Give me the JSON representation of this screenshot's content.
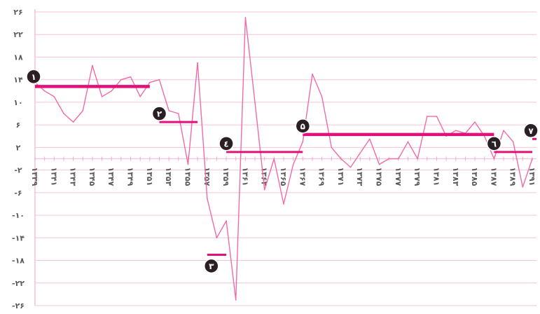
{
  "chart_data": {
    "type": "line",
    "title": "",
    "xlabel": "",
    "ylabel": "",
    "ylim": [
      -26,
      26
    ],
    "y_ticks": [
      {
        "value": 26,
        "label": "۲۶"
      },
      {
        "value": 22,
        "label": "۲۲"
      },
      {
        "value": 18,
        "label": "۱۸"
      },
      {
        "value": 14,
        "label": "۱۴"
      },
      {
        "value": 10,
        "label": "۱۰"
      },
      {
        "value": 6,
        "label": "۶"
      },
      {
        "value": 2,
        "label": "۲"
      },
      {
        "value": -2,
        "label": "-۲"
      },
      {
        "value": -6,
        "label": "-۶"
      },
      {
        "value": -10,
        "label": "-۱۰"
      },
      {
        "value": -14,
        "label": "-۱۴"
      },
      {
        "value": -18,
        "label": "-۱۸"
      },
      {
        "value": -22,
        "label": "-۲۲"
      },
      {
        "value": -26,
        "label": "-۲۶"
      }
    ],
    "x_start": 1339,
    "x_end": 1391,
    "x_ticks": [
      {
        "value": 1339,
        "label": "۱۳۳۹"
      },
      {
        "value": 1341,
        "label": "۱۳۴۱"
      },
      {
        "value": 1343,
        "label": "۱۳۴۳"
      },
      {
        "value": 1345,
        "label": "۱۳۴۵"
      },
      {
        "value": 1347,
        "label": "۱۳۴۷"
      },
      {
        "value": 1349,
        "label": "۱۳۴۹"
      },
      {
        "value": 1351,
        "label": "۱۳۵۱"
      },
      {
        "value": 1353,
        "label": "۱۳۵۳"
      },
      {
        "value": 1355,
        "label": "۱۳۵۵"
      },
      {
        "value": 1357,
        "label": "۱۳۵۷"
      },
      {
        "value": 1359,
        "label": "۱۳۵۹"
      },
      {
        "value": 1361,
        "label": "۱۳۶۱"
      },
      {
        "value": 1363,
        "label": "۱۳۶۳"
      },
      {
        "value": 1365,
        "label": "۱۳۶۵"
      },
      {
        "value": 1367,
        "label": "۱۳۶۷"
      },
      {
        "value": 1369,
        "label": "۱۳۶۹"
      },
      {
        "value": 1371,
        "label": "۱۳۷۱"
      },
      {
        "value": 1373,
        "label": "۱۳۷۳"
      },
      {
        "value": 1375,
        "label": "۱۳۷۵"
      },
      {
        "value": 1377,
        "label": "۱۳۷۷"
      },
      {
        "value": 1379,
        "label": "۱۳۷۹"
      },
      {
        "value": 1381,
        "label": "۱۳۸۱"
      },
      {
        "value": 1383,
        "label": "۱۳۸۳"
      },
      {
        "value": 1385,
        "label": "۱۳۸۵"
      },
      {
        "value": 1387,
        "label": "۱۳۸۷"
      },
      {
        "value": 1389,
        "label": "۱۳۸۹"
      },
      {
        "value": 1391,
        "label": "۱۳۹۱"
      }
    ],
    "grid": true,
    "series": [
      {
        "color": "#f06ba8",
        "x": [
          1339,
          1340,
          1341,
          1342,
          1343,
          1344,
          1345,
          1346,
          1347,
          1348,
          1349,
          1350,
          1351,
          1352,
          1353,
          1354,
          1355,
          1356,
          1357,
          1358,
          1359,
          1360,
          1361,
          1362,
          1363,
          1364,
          1365,
          1366,
          1367,
          1368,
          1369,
          1370,
          1371,
          1372,
          1373,
          1374,
          1375,
          1376,
          1377,
          1378,
          1379,
          1380,
          1381,
          1382,
          1383,
          1384,
          1385,
          1386,
          1387,
          1388,
          1389,
          1390,
          1391
        ],
        "y": [
          13.5,
          12,
          11,
          8,
          6.5,
          8.5,
          16.5,
          11,
          12,
          14,
          14.5,
          11,
          13.5,
          14,
          8.5,
          8,
          -1,
          17,
          -7,
          -14,
          -11,
          -25,
          25,
          10,
          -5.5,
          0,
          -8,
          -1,
          3,
          15,
          11,
          2,
          0,
          -1.5,
          1,
          3.5,
          -1,
          0,
          0,
          3,
          0,
          7.5,
          7.5,
          4,
          5,
          4.5,
          6.5,
          4,
          0,
          5,
          3,
          -5,
          0
        ]
      }
    ],
    "periods": [
      {
        "label": "۱",
        "x_from": 1339,
        "x_to": 1351,
        "level": 12.8
      },
      {
        "label": "۲",
        "x_from": 1352,
        "x_to": 1356,
        "level": 6.5
      },
      {
        "label": "۳",
        "x_from": 1357,
        "x_to": 1359,
        "level": -17
      },
      {
        "label": "٤",
        "x_from": 1359,
        "x_to": 1367,
        "level": 1.2
      },
      {
        "label": "۵",
        "x_from": 1367,
        "x_to": 1387,
        "level": 4.3
      },
      {
        "label": "٦",
        "x_from": 1387,
        "x_to": 1391,
        "level": 1.2
      },
      {
        "label": "۷",
        "x_from": 1391,
        "x_to": 1392,
        "level": 3.5
      }
    ],
    "line_color": "#f06ba8",
    "period_color": "#e0117a",
    "badge_color": "#2a1f24",
    "grid_color": "#f6c3da"
  }
}
